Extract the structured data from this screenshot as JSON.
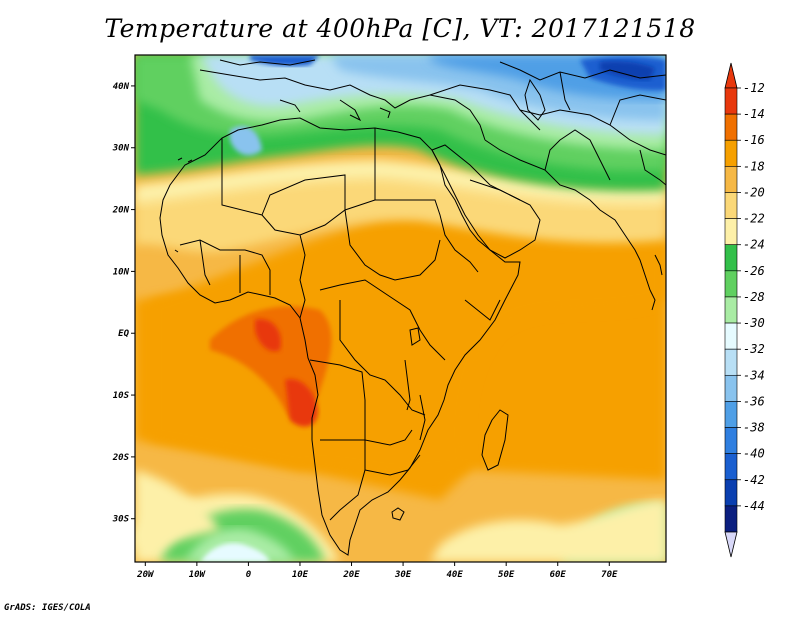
{
  "title": "Temperature at 400hPa [C], VT: 2017121518",
  "footer": "GrADS: IGES/COLA",
  "x_axis_labels": [
    "20W",
    "10W",
    "0",
    "10E",
    "20E",
    "30E",
    "40E",
    "50E",
    "60E",
    "70E"
  ],
  "y_axis_labels": [
    "40N",
    "30N",
    "20N",
    "10N",
    "EQ",
    "10S",
    "20S",
    "30S"
  ],
  "colorbar": {
    "labels": [
      "-12",
      "-14",
      "-16",
      "-18",
      "-20",
      "-22",
      "-24",
      "-26",
      "-28",
      "-30",
      "-32",
      "-34",
      "-36",
      "-38",
      "-40",
      "-42",
      "-44"
    ],
    "colors": [
      "#e8380d",
      "#f07000",
      "#f6a000",
      "#f6b845",
      "#fbd878",
      "#fdf0a8",
      "#33c04a",
      "#60d060",
      "#a9eca4",
      "#e6fbff",
      "#b8dff5",
      "#89c3ee",
      "#4f9fe6",
      "#2f7fe0",
      "#1a5fd0",
      "#0a3fb0",
      "#0b1f80"
    ],
    "overflow_high_color": "#e8380d",
    "overflow_low_color": "#d8d8f8"
  },
  "colors": {
    "map_background": "#f6b845",
    "border_lines": "#000000"
  }
}
